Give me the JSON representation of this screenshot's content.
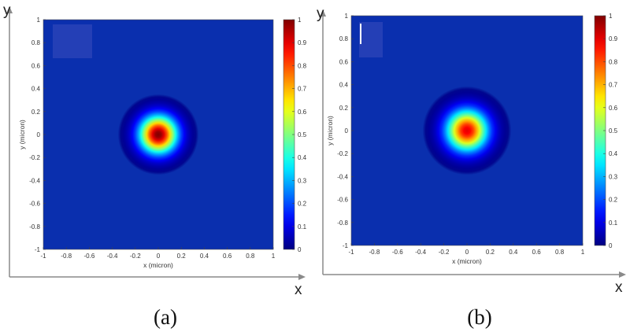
{
  "colors": {
    "plot_background": "#0a2fae",
    "axis": "#8a8a8a",
    "inset_box": "#2b44b8"
  },
  "chart_data": [
    {
      "type": "heatmap",
      "panel_label": "(a)",
      "xlabel": "x (micron)",
      "ylabel": "y (micron)",
      "xlim": [
        -1,
        1
      ],
      "ylim": [
        -1,
        1
      ],
      "x_ticks": [
        "-1",
        "-0.8",
        "-0.6",
        "-0.4",
        "-0.2",
        "0",
        "0.2",
        "0.4",
        "0.6",
        "0.8",
        "1"
      ],
      "y_ticks": [
        "-1",
        "-0.8",
        "-0.6",
        "-0.4",
        "-0.2",
        "0",
        "0.2",
        "0.4",
        "0.6",
        "0.8",
        "1"
      ],
      "colorbar": {
        "min": 0,
        "max": 1,
        "ticks": [
          "0",
          "0.1",
          "0.2",
          "0.3",
          "0.4",
          "0.5",
          "0.6",
          "0.7",
          "0.8",
          "0.9",
          "1"
        ],
        "colormap": "jet"
      },
      "spot": {
        "center_x": 0,
        "center_y": 0,
        "peak": 1.0,
        "sigma_micron": 0.11
      },
      "outer_axes": {
        "x_label": "x",
        "y_label": "y"
      }
    },
    {
      "type": "heatmap",
      "panel_label": "(b)",
      "xlabel": "x (micron)",
      "ylabel": "y (micron)",
      "xlim": [
        -1,
        1
      ],
      "ylim": [
        -1,
        1
      ],
      "x_ticks": [
        "-1",
        "-0.8",
        "-0.6",
        "-0.4",
        "-0.2",
        "0",
        "0.2",
        "0.4",
        "0.6",
        "0.8",
        "1"
      ],
      "y_ticks": [
        "-1",
        "-0.8",
        "-0.6",
        "-0.4",
        "-0.2",
        "0",
        "0.2",
        "0.4",
        "0.6",
        "0.8",
        "1"
      ],
      "colorbar": {
        "min": 0,
        "max": 1,
        "ticks": [
          "0",
          "0.1",
          "0.2",
          "0.3",
          "0.4",
          "0.5",
          "0.6",
          "0.7",
          "0.8",
          "0.9",
          "1"
        ],
        "colormap": "jet"
      },
      "spot": {
        "center_x": 0,
        "center_y": 0,
        "peak": 0.9,
        "sigma_micron": 0.12
      },
      "outer_axes": {
        "x_label": "x",
        "y_label": "y"
      }
    }
  ]
}
